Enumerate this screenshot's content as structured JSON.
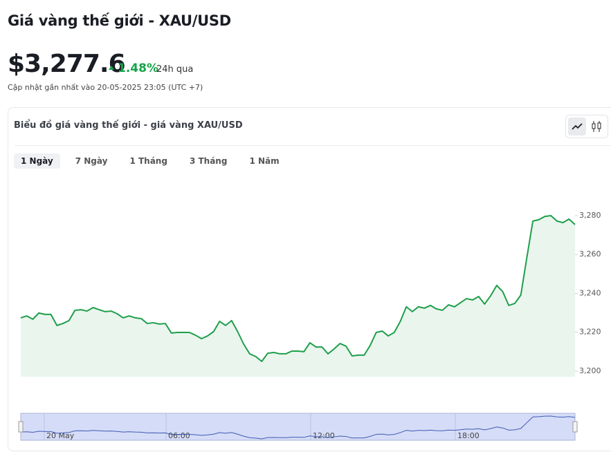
{
  "header": {
    "title": "Giá vàng thế giới - XAU/USD",
    "price": "$3,277.6",
    "change": "1.48%",
    "period": "24h qua",
    "updated": "Cập nhật gần nhất vào 20-05-2025 23:05 (UTC +7)"
  },
  "card": {
    "title": "Biểu đồ giá vàng thế giới - giá vàng XAU/USD",
    "tabs": [
      "1 Ngày",
      "7 Ngày",
      "1 Tháng",
      "3 Tháng",
      "1 Năm"
    ],
    "active_tab": 0
  },
  "chart_data": {
    "type": "area",
    "color": "#1e9e4a",
    "fill": "#eaf5ee",
    "values": [
      3227.4,
      3228.4,
      3226.7,
      3229.9,
      3229.2,
      3229.2,
      3223.5,
      3224.5,
      3226.0,
      3231.3,
      3231.6,
      3230.9,
      3232.7,
      3231.6,
      3230.6,
      3230.9,
      3229.5,
      3227.4,
      3228.4,
      3227.4,
      3227.0,
      3224.5,
      3224.9,
      3224.2,
      3224.5,
      3219.6,
      3219.9,
      3219.9,
      3219.9,
      3218.5,
      3216.7,
      3218.1,
      3220.3,
      3225.6,
      3223.5,
      3226.0,
      3220.3,
      3213.9,
      3208.9,
      3207.5,
      3205.0,
      3209.2,
      3209.6,
      3208.9,
      3208.9,
      3210.3,
      3210.3,
      3210.0,
      3214.6,
      3212.4,
      3212.4,
      3208.9,
      3211.4,
      3214.2,
      3212.8,
      3207.8,
      3208.2,
      3208.2,
      3213.2,
      3219.9,
      3220.6,
      3218.1,
      3219.9,
      3225.6,
      3233.1,
      3230.6,
      3233.1,
      3232.4,
      3233.8,
      3232.0,
      3231.3,
      3234.1,
      3233.1,
      3235.2,
      3237.3,
      3236.6,
      3238.4,
      3234.5,
      3238.8,
      3244.1,
      3240.9,
      3233.8,
      3234.8,
      3239.1,
      3258.3,
      3277.2,
      3277.9,
      3279.6,
      3280.0,
      3277.2,
      3276.4,
      3278.2,
      3275.4
    ],
    "ylim": [
      3197,
      3295
    ],
    "yticks": [
      {
        "value": 3200,
        "label": "3,200"
      },
      {
        "value": 3220,
        "label": "3,220"
      },
      {
        "value": 3240,
        "label": "3,240"
      },
      {
        "value": 3260,
        "label": "3,260"
      },
      {
        "value": 3280,
        "label": "3,280"
      }
    ],
    "navigator_labels": [
      "20 May",
      "06:00",
      "12:00",
      "18:00"
    ]
  }
}
